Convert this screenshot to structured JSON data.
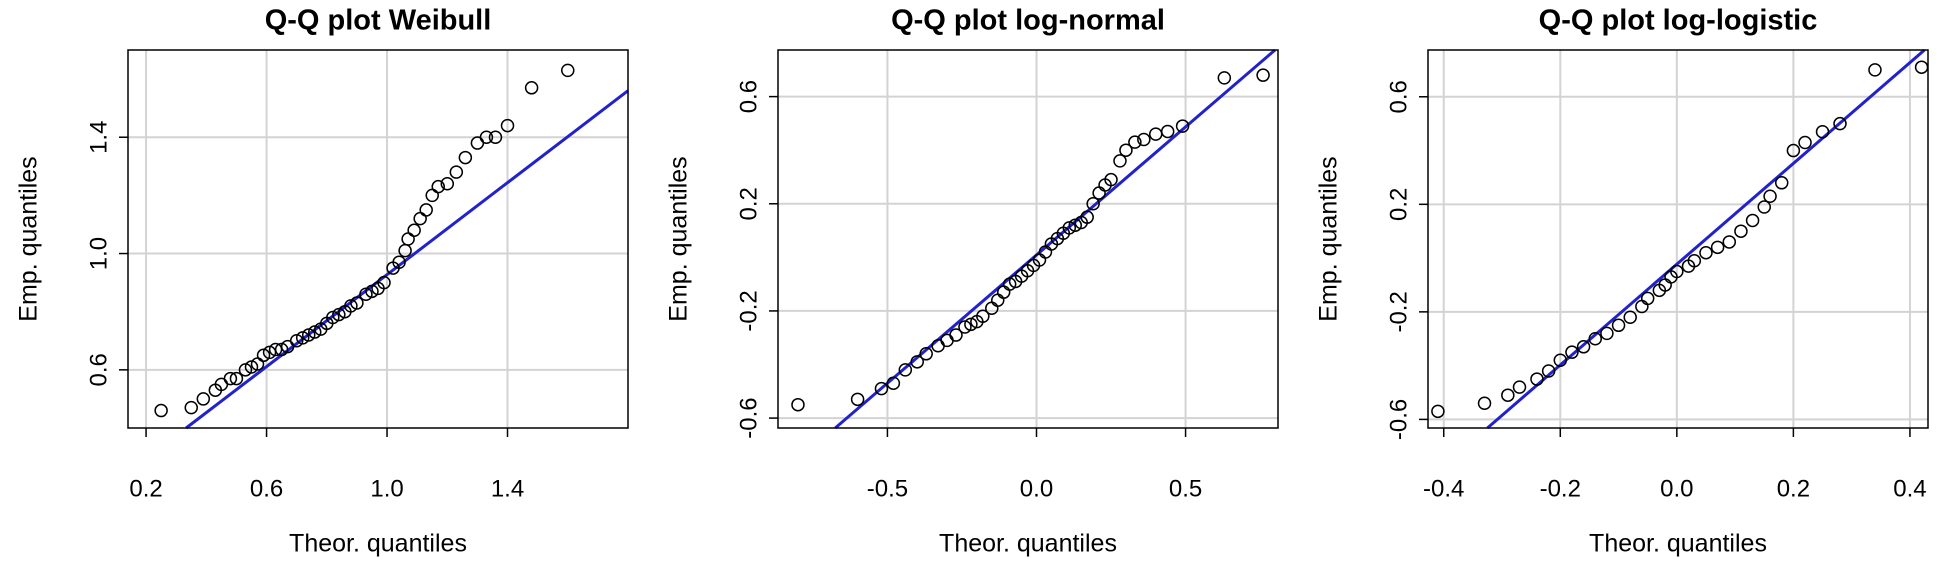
{
  "chart_data": [
    {
      "type": "scatter",
      "title": "Q-Q plot Weibull",
      "xlabel": "Theor. quantiles",
      "ylabel": "Emp. quantiles",
      "xlim": [
        0.14,
        1.8
      ],
      "ylim": [
        0.4,
        1.7
      ],
      "xticks": [
        0.2,
        0.6,
        {
          "value": 1,
          "label": "1.0"
        },
        1.4
      ],
      "yticks": [
        0.6,
        {
          "value": 1,
          "label": "1.0"
        },
        1.4
      ],
      "grid": true,
      "points": {
        "color": "#000000",
        "x": [
          0.25,
          0.35,
          0.39,
          0.43,
          0.45,
          0.48,
          0.5,
          0.53,
          0.55,
          0.57,
          0.59,
          0.61,
          0.63,
          0.65,
          0.67,
          0.7,
          0.72,
          0.74,
          0.76,
          0.78,
          0.8,
          0.82,
          0.84,
          0.86,
          0.88,
          0.9,
          0.93,
          0.95,
          0.97,
          0.99,
          1.02,
          1.04,
          1.06,
          1.07,
          1.09,
          1.11,
          1.13,
          1.15,
          1.17,
          1.2,
          1.23,
          1.26,
          1.3,
          1.33,
          1.36,
          1.4,
          1.48,
          1.6
        ],
        "values": [
          0.46,
          0.47,
          0.5,
          0.53,
          0.55,
          0.57,
          0.57,
          0.6,
          0.61,
          0.62,
          0.65,
          0.66,
          0.67,
          0.67,
          0.68,
          0.7,
          0.71,
          0.72,
          0.73,
          0.74,
          0.76,
          0.78,
          0.79,
          0.8,
          0.82,
          0.83,
          0.86,
          0.87,
          0.88,
          0.9,
          0.95,
          0.97,
          1.01,
          1.05,
          1.08,
          1.12,
          1.15,
          1.2,
          1.23,
          1.24,
          1.28,
          1.33,
          1.38,
          1.4,
          1.4,
          1.44,
          1.57,
          1.63
        ]
      },
      "reference_line": {
        "color": "#2222cc",
        "x": [
          0.333,
          1.8
        ],
        "values": [
          0.4,
          1.56
        ]
      }
    },
    {
      "type": "scatter",
      "title": "Q-Q plot log-normal",
      "xlabel": "Theor. quantiles",
      "ylabel": "Emp. quantiles",
      "xlim": [
        -0.867,
        0.81
      ],
      "ylim": [
        -0.637,
        0.774
      ],
      "xticks": [
        -0.5,
        {
          "value": 0,
          "label": "0.0"
        },
        0.5
      ],
      "yticks": [
        -0.6,
        -0.2,
        0.2,
        0.6
      ],
      "grid": true,
      "points": {
        "color": "#000000",
        "x": [
          -0.8,
          -0.6,
          -0.52,
          -0.48,
          -0.44,
          -0.4,
          -0.37,
          -0.33,
          -0.3,
          -0.27,
          -0.24,
          -0.22,
          -0.2,
          -0.18,
          -0.15,
          -0.13,
          -0.11,
          -0.09,
          -0.07,
          -0.05,
          -0.03,
          -0.01,
          0.01,
          0.03,
          0.05,
          0.07,
          0.09,
          0.11,
          0.13,
          0.15,
          0.17,
          0.19,
          0.21,
          0.23,
          0.25,
          0.28,
          0.3,
          0.33,
          0.36,
          0.4,
          0.44,
          0.49,
          0.63,
          0.76
        ],
        "values": [
          -0.55,
          -0.53,
          -0.49,
          -0.47,
          -0.42,
          -0.39,
          -0.36,
          -0.33,
          -0.31,
          -0.29,
          -0.26,
          -0.25,
          -0.24,
          -0.22,
          -0.19,
          -0.16,
          -0.13,
          -0.1,
          -0.09,
          -0.07,
          -0.05,
          -0.03,
          -0.01,
          0.02,
          0.05,
          0.07,
          0.09,
          0.11,
          0.12,
          0.13,
          0.15,
          0.2,
          0.24,
          0.27,
          0.29,
          0.36,
          0.4,
          0.43,
          0.44,
          0.46,
          0.47,
          0.49,
          0.67,
          0.68
        ]
      },
      "reference_line": {
        "color": "#2222cc",
        "x": [
          -0.675,
          0.8
        ],
        "values": [
          -0.637,
          0.774
        ]
      }
    },
    {
      "type": "scatter",
      "title": "Q-Q plot log-logistic",
      "xlabel": "Theor. quantiles",
      "ylabel": "Emp. quantiles",
      "xlim": [
        -0.427,
        0.431
      ],
      "ylim": [
        -0.632,
        0.774
      ],
      "xticks": [
        -0.4,
        -0.2,
        {
          "value": 0,
          "label": "0.0"
        },
        0.2,
        0.4
      ],
      "yticks": [
        -0.6,
        -0.2,
        0.2,
        0.6
      ],
      "grid": true,
      "points": {
        "color": "#000000",
        "x": [
          -0.41,
          -0.33,
          -0.29,
          -0.27,
          -0.24,
          -0.22,
          -0.2,
          -0.18,
          -0.16,
          -0.14,
          -0.12,
          -0.1,
          -0.08,
          -0.06,
          -0.05,
          -0.03,
          -0.02,
          -0.01,
          0,
          0.02,
          0.03,
          0.05,
          0.07,
          0.09,
          0.11,
          0.13,
          0.15,
          0.16,
          0.18,
          0.2,
          0.22,
          0.25,
          0.28,
          0.34,
          0.42
        ],
        "values": [
          -0.57,
          -0.54,
          -0.51,
          -0.48,
          -0.45,
          -0.42,
          -0.38,
          -0.35,
          -0.33,
          -0.3,
          -0.28,
          -0.25,
          -0.22,
          -0.18,
          -0.15,
          -0.12,
          -0.1,
          -0.07,
          -0.05,
          -0.03,
          -0.01,
          0.02,
          0.04,
          0.06,
          0.1,
          0.14,
          0.19,
          0.23,
          0.28,
          0.4,
          0.43,
          0.47,
          0.5,
          0.7,
          0.71
        ]
      },
      "reference_line": {
        "color": "#2222cc",
        "x": [
          -0.325,
          0.425
        ],
        "values": [
          -0.632,
          0.774
        ]
      }
    }
  ]
}
